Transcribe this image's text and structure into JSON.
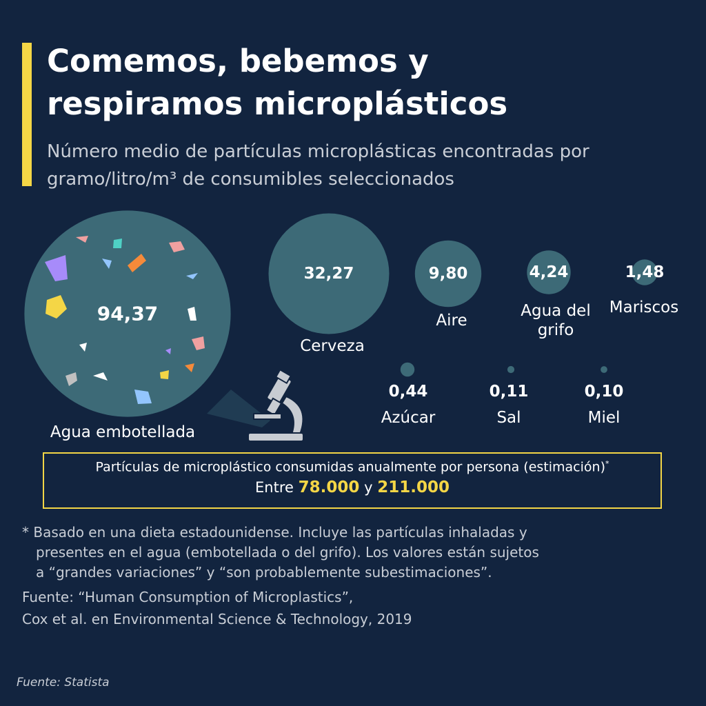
{
  "header": {
    "title": "Comemos, bebemos y respiramos microplásticos",
    "subtitle": "Número medio de partículas microplásticas encontradas por gramo/litro/m³ de consumibles seleccionados"
  },
  "chart_data": {
    "type": "bubble",
    "categories": [
      "Agua embotellada",
      "Cerveza",
      "Aire",
      "Agua del grifo",
      "Mariscos",
      "Azúcar",
      "Sal",
      "Miel"
    ],
    "values": [
      94.37,
      32.27,
      9.8,
      4.24,
      1.48,
      0.44,
      0.11,
      0.1
    ],
    "value_labels": [
      "94,37",
      "32,27",
      "9,80",
      "4,24",
      "1,48",
      "0,44",
      "0,11",
      "0,10"
    ],
    "color": "#3d6a77"
  },
  "callout": {
    "text": "Partículas de microplástico consumidas anualmente por persona (estimación)",
    "mark": "*",
    "prefix": "Entre",
    "low": "78.000",
    "joiner": "y",
    "high": "211.000"
  },
  "footnote": [
    "* Basado en una dieta estadounidense. Incluye las partículas inhaladas y",
    "presentes en el agua (embotellada o del grifo). Los valores están sujetos",
    "a “grandes variaciones” y “son probablemente subestimaciones”."
  ],
  "source": [
    "Fuente: “Human Consumption of Microplastics”,",
    "Cox et al. en Environmental Science & Technology, 2019"
  ],
  "credit": "Fuente: Statista"
}
